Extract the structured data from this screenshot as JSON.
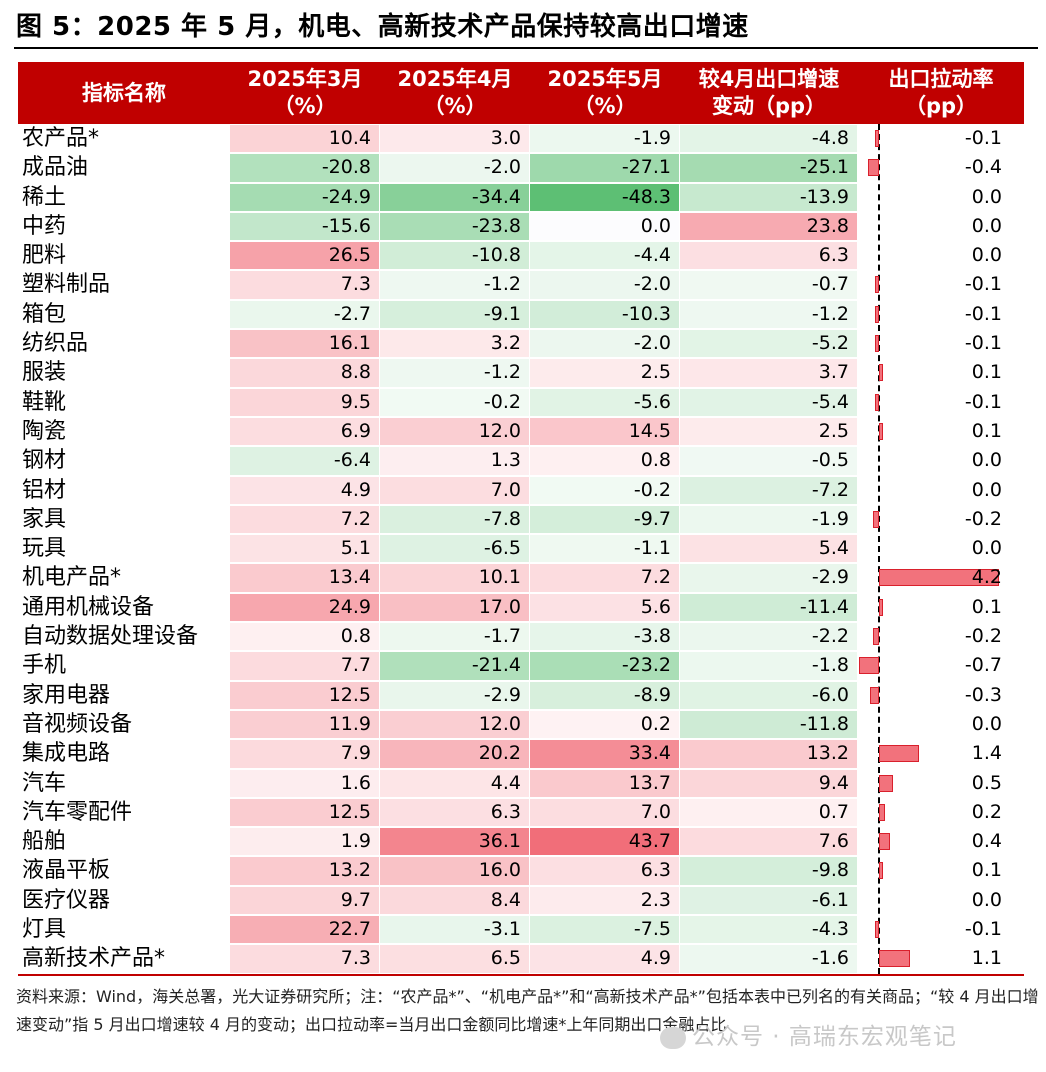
{
  "title": "图 5：2025 年 5 月，机电、高新技术产品保持较高出口增速",
  "header": {
    "col0": [
      "指标名称"
    ],
    "col1": [
      "2025年3月",
      "（%）"
    ],
    "col2": [
      "2025年4月",
      "（%）"
    ],
    "col3": [
      "2025年5月",
      "（%）"
    ],
    "col4": [
      "较4月出口增速",
      "变动（pp）"
    ],
    "col5": [
      "出口拉动率",
      "（pp）"
    ]
  },
  "colors": {
    "header_bg": "#c00000",
    "positive": "#f0606c",
    "negative": "#5dbf74",
    "bar_fill": "#f2727c",
    "bar_border": "#d9202c"
  },
  "chart_data": {
    "type": "table",
    "columns": [
      "指标名称",
      "2025年3月（%）",
      "2025年4月（%）",
      "2025年5月（%）",
      "较4月出口增速变动（pp）",
      "出口拉动率（pp）"
    ],
    "rows": [
      {
        "name": "农产品*",
        "mar": "10.4",
        "apr": "3.0",
        "may": "-1.9",
        "chg": "-4.8",
        "pull": "-0.1"
      },
      {
        "name": "成品油",
        "mar": "-20.8",
        "apr": "-2.0",
        "may": "-27.1",
        "chg": "-25.1",
        "pull": "-0.4"
      },
      {
        "name": "稀土",
        "mar": "-24.9",
        "apr": "-34.4",
        "may": "-48.3",
        "chg": "-13.9",
        "pull": "0.0"
      },
      {
        "name": "中药",
        "mar": "-15.6",
        "apr": "-23.8",
        "may": "0.0",
        "chg": "23.8",
        "pull": "0.0"
      },
      {
        "name": "肥料",
        "mar": "26.5",
        "apr": "-10.8",
        "may": "-4.4",
        "chg": "6.3",
        "pull": "0.0"
      },
      {
        "name": "塑料制品",
        "mar": "7.3",
        "apr": "-1.2",
        "may": "-2.0",
        "chg": "-0.7",
        "pull": "-0.1"
      },
      {
        "name": "箱包",
        "mar": "-2.7",
        "apr": "-9.1",
        "may": "-10.3",
        "chg": "-1.2",
        "pull": "-0.1"
      },
      {
        "name": "纺织品",
        "mar": "16.1",
        "apr": "3.2",
        "may": "-2.0",
        "chg": "-5.2",
        "pull": "-0.1"
      },
      {
        "name": "服装",
        "mar": "8.8",
        "apr": "-1.2",
        "may": "2.5",
        "chg": "3.7",
        "pull": "0.1"
      },
      {
        "name": "鞋靴",
        "mar": "9.5",
        "apr": "-0.2",
        "may": "-5.6",
        "chg": "-5.4",
        "pull": "-0.1"
      },
      {
        "name": "陶瓷",
        "mar": "6.9",
        "apr": "12.0",
        "may": "14.5",
        "chg": "2.5",
        "pull": "0.1"
      },
      {
        "name": "钢材",
        "mar": "-6.4",
        "apr": "1.3",
        "may": "0.8",
        "chg": "-0.5",
        "pull": "0.0"
      },
      {
        "name": "铝材",
        "mar": "4.9",
        "apr": "7.0",
        "may": "-0.2",
        "chg": "-7.2",
        "pull": "0.0"
      },
      {
        "name": "家具",
        "mar": "7.2",
        "apr": "-7.8",
        "may": "-9.7",
        "chg": "-1.9",
        "pull": "-0.2"
      },
      {
        "name": "玩具",
        "mar": "5.1",
        "apr": "-6.5",
        "may": "-1.1",
        "chg": "5.4",
        "pull": "0.0"
      },
      {
        "name": "机电产品*",
        "mar": "13.4",
        "apr": "10.1",
        "may": "7.2",
        "chg": "-2.9",
        "pull": "4.2"
      },
      {
        "name": "通用机械设备",
        "mar": "24.9",
        "apr": "17.0",
        "may": "5.6",
        "chg": "-11.4",
        "pull": "0.1"
      },
      {
        "name": "自动数据处理设备",
        "mar": "0.8",
        "apr": "-1.7",
        "may": "-3.8",
        "chg": "-2.2",
        "pull": "-0.2"
      },
      {
        "name": "手机",
        "mar": "7.7",
        "apr": "-21.4",
        "may": "-23.2",
        "chg": "-1.8",
        "pull": "-0.7"
      },
      {
        "name": "家用电器",
        "mar": "12.5",
        "apr": "-2.9",
        "may": "-8.9",
        "chg": "-6.0",
        "pull": "-0.3"
      },
      {
        "name": "音视频设备",
        "mar": "11.9",
        "apr": "12.0",
        "may": "0.2",
        "chg": "-11.8",
        "pull": "0.0"
      },
      {
        "name": "集成电路",
        "mar": "7.9",
        "apr": "20.2",
        "may": "33.4",
        "chg": "13.2",
        "pull": "1.4"
      },
      {
        "name": "汽车",
        "mar": "1.6",
        "apr": "4.4",
        "may": "13.7",
        "chg": "9.4",
        "pull": "0.5"
      },
      {
        "name": "汽车零配件",
        "mar": "12.5",
        "apr": "6.3",
        "may": "7.0",
        "chg": "0.7",
        "pull": "0.2"
      },
      {
        "name": "船舶",
        "mar": "1.9",
        "apr": "36.1",
        "may": "43.7",
        "chg": "7.6",
        "pull": "0.4"
      },
      {
        "name": "液晶平板",
        "mar": "13.2",
        "apr": "16.0",
        "may": "6.3",
        "chg": "-9.8",
        "pull": "0.1"
      },
      {
        "name": "医疗仪器",
        "mar": "9.7",
        "apr": "8.4",
        "may": "2.3",
        "chg": "-6.1",
        "pull": "0.0"
      },
      {
        "name": "灯具",
        "mar": "22.7",
        "apr": "-3.1",
        "may": "-7.5",
        "chg": "-4.3",
        "pull": "-0.1"
      },
      {
        "name": "高新技术产品*",
        "mar": "7.3",
        "apr": "6.5",
        "may": "4.9",
        "chg": "-1.6",
        "pull": "1.1"
      }
    ]
  },
  "source": "资料来源：Wind，海关总署，光大证券研究所；注：“农产品*”、“机电产品*”和“高新技术产品*”包括本表中已列名的有关商品；“较 4 月出口增速变动”指 5 月出口增速较 4 月的变动；出口拉动率=当月出口金额同比增速*上年同期出口金融占比",
  "watermark": "公众号 · 高瑞东宏观笔记"
}
